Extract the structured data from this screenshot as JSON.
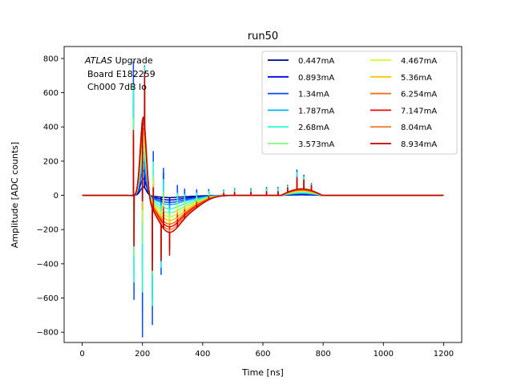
{
  "chart_data": {
    "type": "line",
    "title": "run50",
    "xlabel": "Time [ns]",
    "ylabel": "Amplitude [ADC counts]",
    "xlim": [
      -60,
      1260
    ],
    "ylim": [
      -860,
      870
    ],
    "xticks": [
      0,
      200,
      400,
      600,
      800,
      1000,
      1200
    ],
    "yticks": [
      -800,
      -600,
      -400,
      -200,
      0,
      200,
      400,
      600,
      800
    ],
    "annotation": {
      "line1_italic": "ATLAS",
      "line1_rest": " Upgrade",
      "line2": "Board E182259",
      "line3": "Ch000 7dB lo"
    },
    "legend_location": "upper right",
    "series": [
      {
        "name": "0.447mA",
        "color": "#00007f",
        "peak": 50,
        "under": -12,
        "post": 3,
        "spike": 90
      },
      {
        "name": "0.893mA",
        "color": "#0000f1",
        "peak": 100,
        "under": -25,
        "post": 6,
        "spike": 620
      },
      {
        "name": "1.34mA",
        "color": "#004cff",
        "peak": 150,
        "under": -38,
        "post": 9,
        "spike": 780
      },
      {
        "name": "1.787mA",
        "color": "#00b0ff",
        "peak": 200,
        "under": -50,
        "post": 12,
        "spike": 500
      },
      {
        "name": "2.68mA",
        "color": "#29ffce",
        "peak": 260,
        "under": -72,
        "post": 16,
        "spike": 650
      },
      {
        "name": "3.573mA",
        "color": "#7dff7a",
        "peak": 300,
        "under": -95,
        "post": 20,
        "spike": 450
      },
      {
        "name": "4.467mA",
        "color": "#ceff29",
        "peak": 340,
        "under": -115,
        "post": 24,
        "spike": 380
      },
      {
        "name": "5.36mA",
        "color": "#ffc400",
        "peak": 380,
        "under": -135,
        "post": 28,
        "spike": 350
      },
      {
        "name": "6.254mA",
        "color": "#ff6800",
        "peak": 410,
        "under": -155,
        "post": 31,
        "spike": 330
      },
      {
        "name": "7.147mA",
        "color": "#f10800",
        "peak": 440,
        "under": -170,
        "post": 34,
        "spike": 340
      },
      {
        "name": "8.04mA",
        "color": "#f08030",
        "peak": 460,
        "under": -185,
        "post": 36,
        "spike": 350
      },
      {
        "name": "8.934mA",
        "color": "#c00000",
        "peak": 480,
        "under": -200,
        "post": 38,
        "spike": 380
      }
    ]
  }
}
